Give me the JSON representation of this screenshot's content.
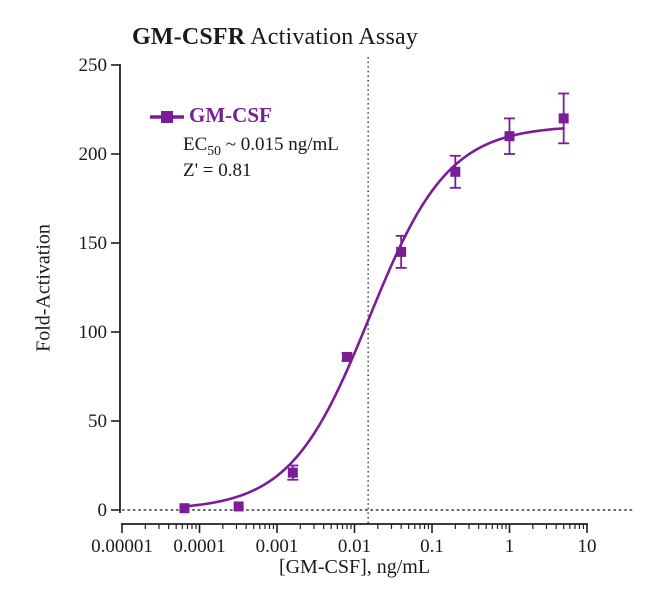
{
  "title": {
    "bold": "GM-CSFR",
    "regular": " Activation Assay"
  },
  "legend": {
    "series_label": "GM-CSF",
    "ec50_base": "EC",
    "ec50_sub": "50",
    "ec50_value": " ~ 0.015 ng/mL",
    "z_prime": "Z' = 0.81"
  },
  "y_axis": {
    "label": "Fold-Activation",
    "tick_labels": [
      "0",
      "50",
      "100",
      "150",
      "200",
      "250"
    ],
    "tick_values": [
      0,
      50,
      100,
      150,
      200,
      250
    ]
  },
  "x_axis": {
    "label": "[GM-CSF], ng/mL",
    "tick_labels": [
      "0.00001",
      "0.0001",
      "0.001",
      "0.01",
      "0.1",
      "1",
      "10"
    ],
    "tick_values": [
      1e-05,
      0.0001,
      0.001,
      0.01,
      0.1,
      1,
      10
    ]
  },
  "colors": {
    "series": "#7a1d96",
    "curve": "#7a1d96",
    "axis": "#231f20",
    "dotted_line": "#3a3a3a",
    "text": "#1a1a1a",
    "background": "#ffffff"
  },
  "chart_data": {
    "type": "scatter",
    "title": "GM-CSFR Activation Assay",
    "xlabel": "[GM-CSF], ng/mL",
    "ylabel": "Fold-Activation",
    "x_scale": "log",
    "xlim": [
      1e-05,
      10
    ],
    "ylim": [
      0,
      250
    ],
    "grid": false,
    "legend_position": "upper-left-inside",
    "series": [
      {
        "name": "GM-CSF",
        "marker": "square",
        "color": "#7a1d96",
        "points": [
          {
            "x": 6.4e-05,
            "y": 1,
            "err": 0
          },
          {
            "x": 0.00032,
            "y": 2,
            "err": 0
          },
          {
            "x": 0.0016,
            "y": 21,
            "err": 4
          },
          {
            "x": 0.008,
            "y": 86,
            "err": 2
          },
          {
            "x": 0.04,
            "y": 145,
            "err": 9
          },
          {
            "x": 0.2,
            "y": 190,
            "err": 9
          },
          {
            "x": 1,
            "y": 210,
            "err": 10
          },
          {
            "x": 5,
            "y": 220,
            "err": 14
          }
        ]
      }
    ],
    "fit_curve": {
      "model": "4PL",
      "bottom": 0,
      "top": 216,
      "ec50": 0.0155,
      "hill": 0.85,
      "x_start": 6.4e-05,
      "x_end": 5
    },
    "reference_lines": {
      "vertical_x": 0.015,
      "horizontal_y": 0
    },
    "annotations": {
      "ec50": "EC50 ~ 0.015 ng/mL",
      "z_prime": "Z' = 0.81"
    }
  }
}
